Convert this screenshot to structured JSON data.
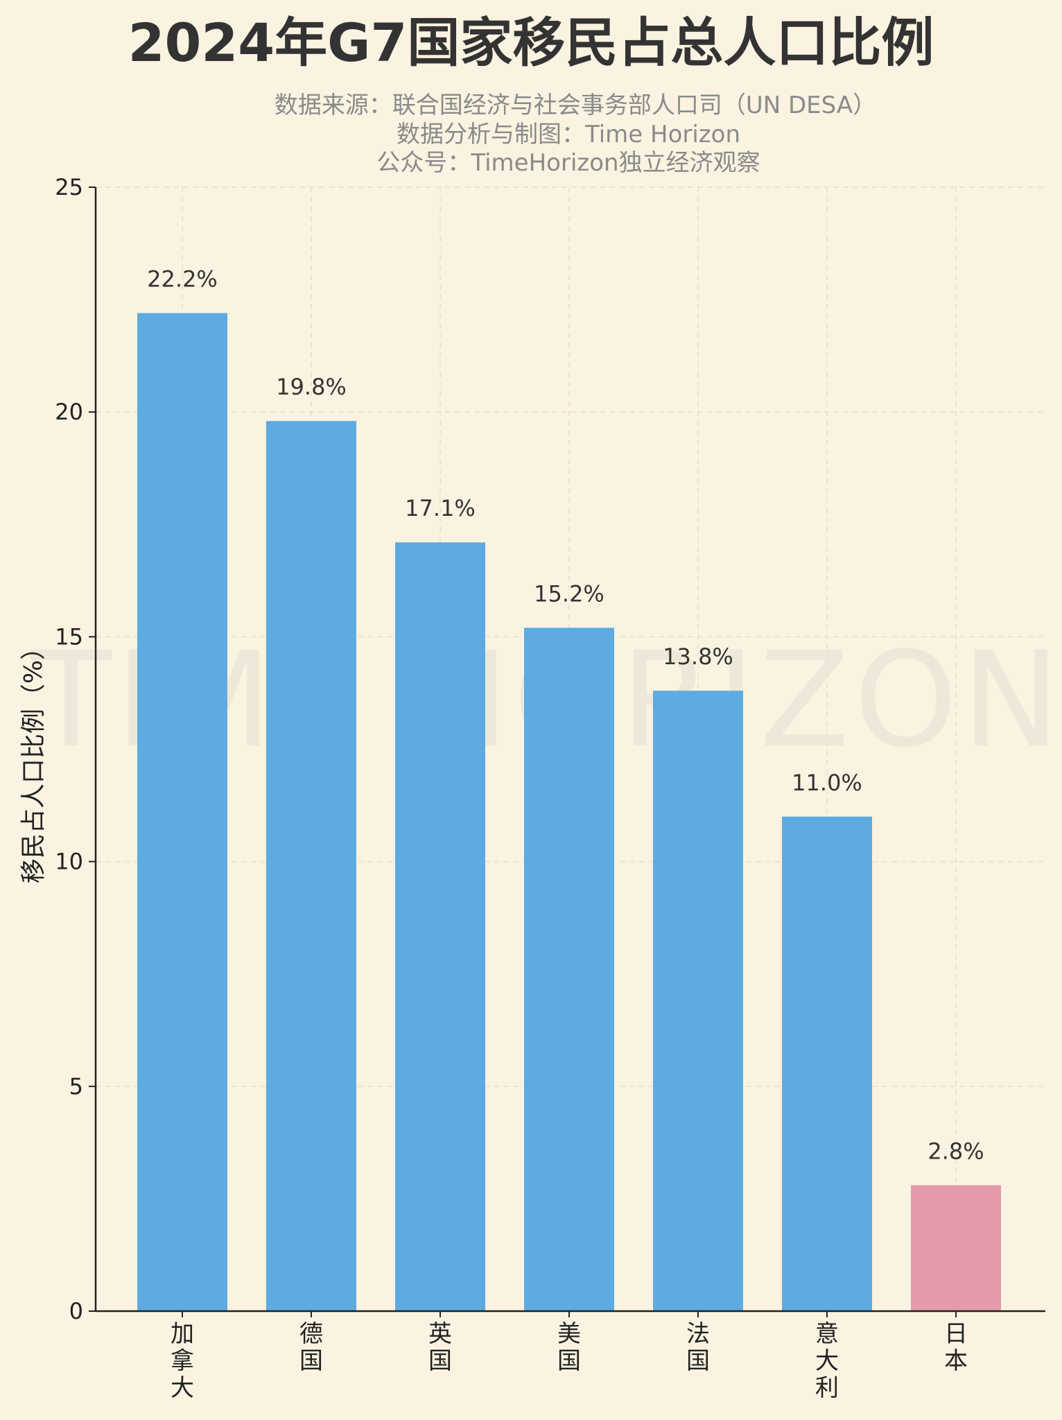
{
  "colors": {
    "background": "#faf3e1",
    "bar_default": "#5dabe1",
    "bar_highlight": "#e49aab",
    "grid": "#e8dfcb",
    "axis": "#222222"
  },
  "header": {
    "title": "2024年G7国家移民占总人口比例",
    "subtitle_lines": [
      "数据来源：联合国经济与社会事务部人口司（UN DESA）",
      "数据分析与制图：Time Horizon",
      "公众号：TimeHorizon独立经济观察"
    ]
  },
  "watermark": "TIME HORIZON",
  "chart_data": {
    "type": "bar",
    "title": "2024年G7国家移民占总人口比例",
    "ylabel": "移民占人口比例（%）",
    "xlabel": "",
    "ylim": [
      0,
      25
    ],
    "yticks": [
      0,
      5,
      10,
      15,
      20,
      25
    ],
    "grid": true,
    "categories": [
      "加拿大",
      "德国",
      "英国",
      "美国",
      "法国",
      "意大利",
      "日本"
    ],
    "values": [
      22.2,
      19.8,
      17.1,
      15.2,
      13.8,
      11.0,
      2.8
    ],
    "data_labels": [
      "22.2%",
      "19.8%",
      "17.1%",
      "15.2%",
      "13.8%",
      "11.0%",
      "2.8%"
    ],
    "highlight_category": "日本"
  }
}
